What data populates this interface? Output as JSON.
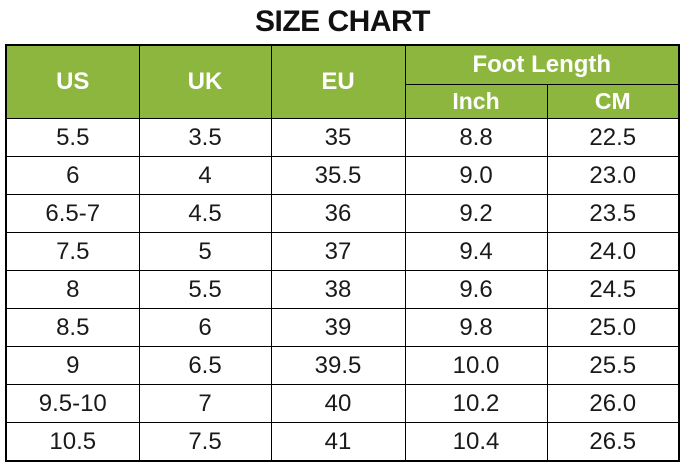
{
  "title": "SIZE CHART",
  "colors": {
    "header_green": "#8CB63E",
    "header_text": "#FFFFFF",
    "body_text": "#1A1A1A",
    "grid_line": "#000000",
    "background": "#FFFFFF"
  },
  "header": {
    "us": "US",
    "uk": "UK",
    "eu": "EU",
    "foot_length": "Foot Length",
    "inch": "Inch",
    "cm": "CM"
  },
  "chart_data": {
    "type": "table",
    "title": "SIZE CHART",
    "column_headers": [
      "US",
      "UK",
      "EU",
      "Foot Length Inch",
      "Foot Length CM"
    ],
    "group_header": {
      "label": "Foot Length",
      "spans": [
        "Inch",
        "CM"
      ]
    },
    "rows": [
      [
        "5.5",
        "3.5",
        "35",
        "8.8",
        "22.5"
      ],
      [
        "6",
        "4",
        "35.5",
        "9.0",
        "23.0"
      ],
      [
        "6.5-7",
        "4.5",
        "36",
        "9.2",
        "23.5"
      ],
      [
        "7.5",
        "5",
        "37",
        "9.4",
        "24.0"
      ],
      [
        "8",
        "5.5",
        "38",
        "9.6",
        "24.5"
      ],
      [
        "8.5",
        "6",
        "39",
        "9.8",
        "25.0"
      ],
      [
        "9",
        "6.5",
        "39.5",
        "10.0",
        "25.5"
      ],
      [
        "9.5-10",
        "7",
        "40",
        "10.2",
        "26.0"
      ],
      [
        "10.5",
        "7.5",
        "41",
        "10.4",
        "26.5"
      ]
    ]
  }
}
